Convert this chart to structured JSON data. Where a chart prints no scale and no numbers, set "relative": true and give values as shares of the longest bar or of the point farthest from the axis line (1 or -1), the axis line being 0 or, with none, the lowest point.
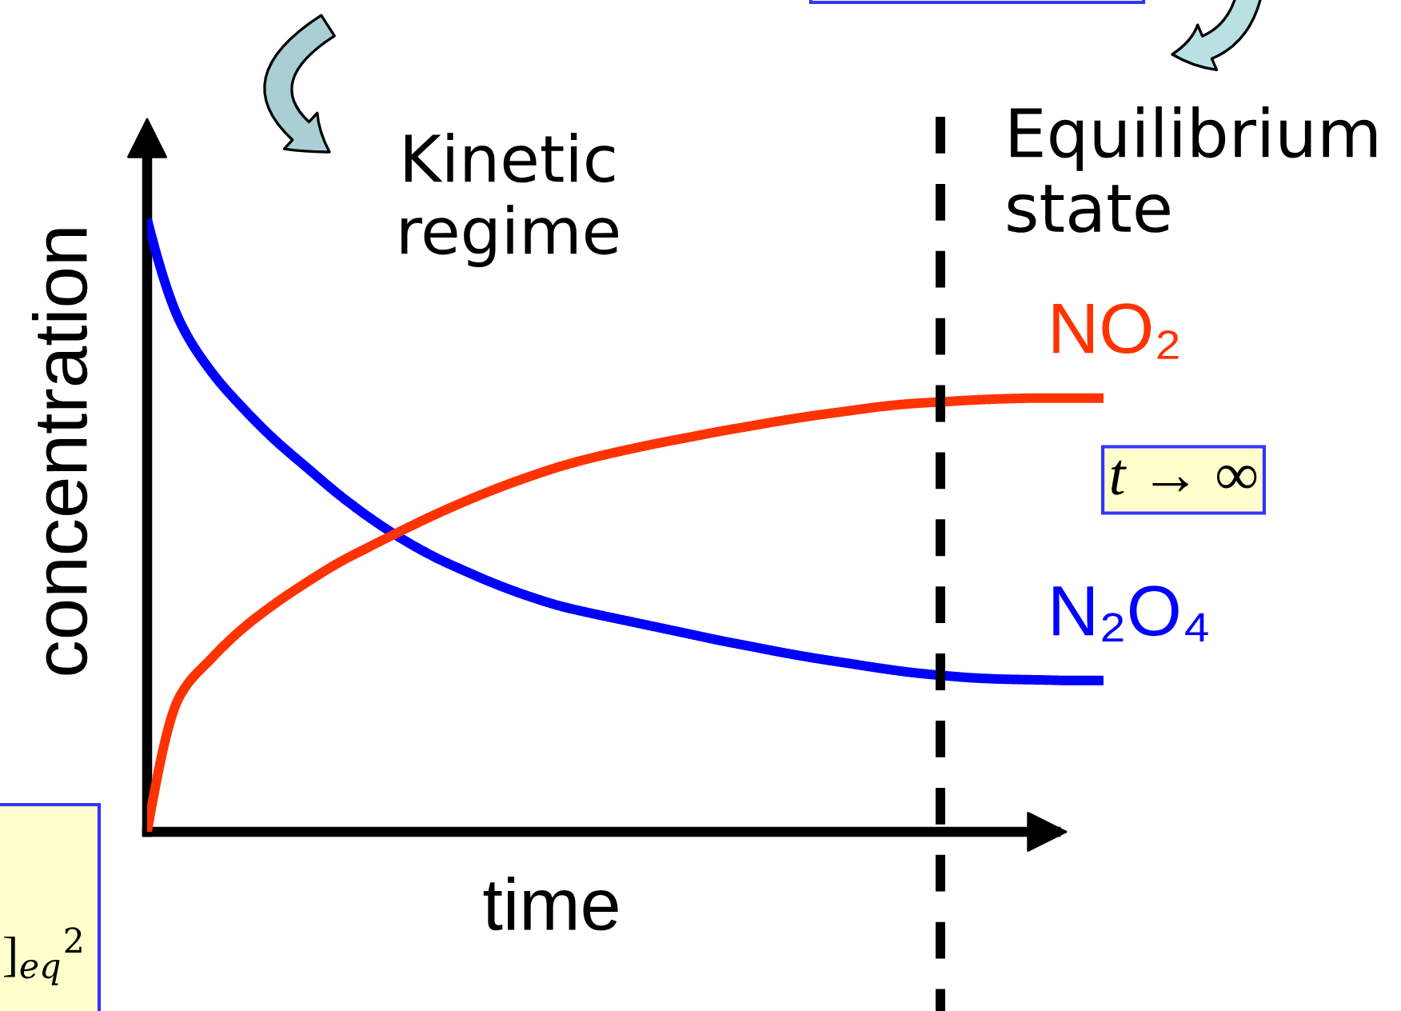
{
  "chart_data": {
    "type": "line",
    "relative": true,
    "xlabel": "time",
    "ylabel": "concentration",
    "categories": [
      null,
      null,
      null,
      null,
      null,
      null,
      null,
      null,
      null,
      null,
      null,
      null,
      null,
      null,
      null,
      null,
      null,
      null,
      null,
      null,
      null,
      null,
      null,
      null,
      null,
      null,
      null,
      null,
      null,
      null,
      null
    ],
    "series": [
      {
        "name": "N₂O₄",
        "color": "#0000ff",
        "values": [
          1,
          0.836,
          0.752,
          0.692,
          0.64,
          0.595,
          0.551,
          0.512,
          0.478,
          0.449,
          0.425,
          0.403,
          0.384,
          0.368,
          0.356,
          0.345,
          0.334,
          0.323,
          0.312,
          0.302,
          0.292,
          0.283,
          0.275,
          0.267,
          0.26,
          0.255,
          0.251,
          0.249,
          0.248,
          0.247,
          0.247
        ]
      },
      {
        "name": "NO₂",
        "color": "#ff3300",
        "values": [
          0,
          0.219,
          0.282,
          0.332,
          0.372,
          0.407,
          0.439,
          0.466,
          0.492,
          0.517,
          0.54,
          0.561,
          0.58,
          0.597,
          0.611,
          0.623,
          0.634,
          0.644,
          0.654,
          0.663,
          0.672,
          0.68,
          0.687,
          0.694,
          0.699,
          0.702,
          0.705,
          0.707,
          0.708,
          0.708,
          0.708
        ]
      }
    ],
    "annotations": [
      "Kinetic\nregime",
      "Equilibrium\nstate",
      "t → ∞",
      "]$_{eq}$$^{2}$"
    ]
  }
}
